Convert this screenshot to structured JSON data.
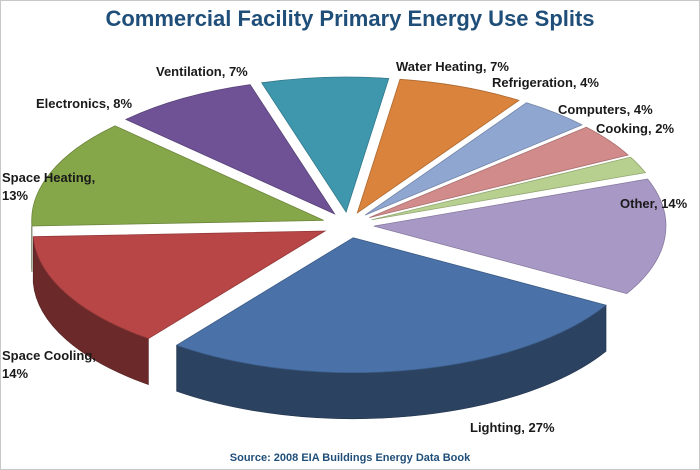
{
  "chart_data": {
    "type": "pie",
    "title": "Commercial Facility Primary Energy Use Splits",
    "source": "Source: 2008 EIA Buildings Energy Data  Book",
    "slices": [
      {
        "name": "Lighting",
        "value": 27,
        "label": "Lighting, 27%",
        "color": "#4a72a8"
      },
      {
        "name": "Space Cooling",
        "value": 14,
        "label": "Space Cooling, 14%",
        "color": "#b84646"
      },
      {
        "name": "Space Heating",
        "value": 13,
        "label": "Space Heating, 13%",
        "color": "#86a64a"
      },
      {
        "name": "Electronics",
        "value": 8,
        "label": "Electronics, 8%",
        "color": "#6e5295"
      },
      {
        "name": "Ventilation",
        "value": 7,
        "label": "Ventilation, 7%",
        "color": "#3f97ad"
      },
      {
        "name": "Water Heating",
        "value": 7,
        "label": "Water Heating, 7%",
        "color": "#d9833c"
      },
      {
        "name": "Refrigeration",
        "value": 4,
        "label": "Refrigeration, 4%",
        "color": "#8fa6d1"
      },
      {
        "name": "Computers",
        "value": 4,
        "label": "Computers, 4%",
        "color": "#d28b8b"
      },
      {
        "name": "Cooking",
        "value": 2,
        "label": "Cooking, 2%",
        "color": "#b7d08f"
      },
      {
        "name": "Other",
        "value": 14,
        "label": "Other, 14%",
        "color": "#a898c6"
      }
    ]
  }
}
